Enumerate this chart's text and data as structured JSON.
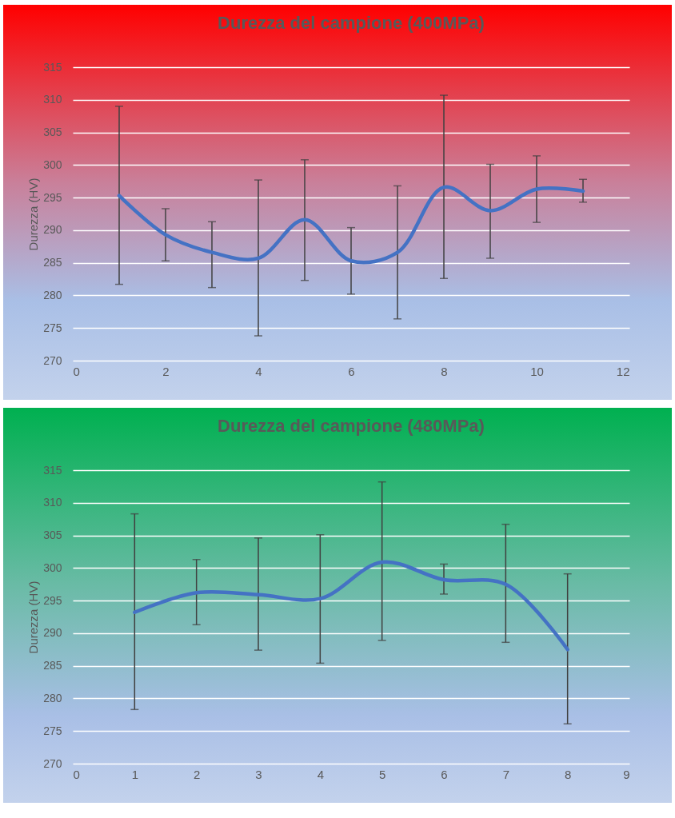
{
  "chart_data": [
    {
      "type": "line",
      "title": "Durezza del campione (400MPa)",
      "ylabel": "Durezza (HV)",
      "x": [
        1,
        2,
        3,
        4,
        5,
        6,
        7,
        8,
        9,
        10,
        11
      ],
      "values": [
        295.3,
        289.3,
        286.6,
        285.7,
        291.6,
        285.3,
        286.6,
        296.6,
        293.0,
        296.3,
        296.0
      ],
      "errors": [
        [
          281.7,
          309.0
        ],
        [
          285.3,
          293.3
        ],
        [
          281.2,
          291.3
        ],
        [
          273.8,
          297.7
        ],
        [
          282.3,
          300.8
        ],
        [
          280.2,
          290.4
        ],
        [
          276.4,
          296.8
        ],
        [
          282.6,
          310.7
        ],
        [
          285.7,
          300.1
        ],
        [
          291.2,
          301.4
        ],
        [
          294.3,
          297.8
        ]
      ],
      "color": "#4472c4",
      "xlim": [
        0,
        12
      ],
      "xticks": [
        0,
        2,
        4,
        6,
        8,
        10,
        12
      ],
      "ylim": [
        270,
        315
      ],
      "yticks": [
        270,
        275,
        280,
        285,
        290,
        295,
        300,
        305,
        310,
        315
      ],
      "grid": "y"
    },
    {
      "type": "line",
      "title": "Durezza del campione (480MPa)",
      "ylabel": "Durezza (HV)",
      "x": [
        1,
        2,
        3,
        4,
        5,
        6,
        7,
        8
      ],
      "values": [
        293.2,
        296.2,
        295.9,
        295.3,
        300.9,
        298.2,
        297.5,
        287.5
      ],
      "errors": [
        [
          278.3,
          308.3
        ],
        [
          291.3,
          301.3
        ],
        [
          287.4,
          304.6
        ],
        [
          285.4,
          305.1
        ],
        [
          288.9,
          313.2
        ],
        [
          296.0,
          300.6
        ],
        [
          288.6,
          306.7
        ],
        [
          276.1,
          299.1
        ]
      ],
      "color": "#4472c4",
      "xlim": [
        0,
        9
      ],
      "xticks": [
        0,
        1,
        2,
        3,
        4,
        5,
        6,
        7,
        8,
        9
      ],
      "ylim": [
        270,
        315
      ],
      "yticks": [
        270,
        275,
        280,
        285,
        290,
        295,
        300,
        305,
        310,
        315
      ],
      "grid": "y"
    }
  ]
}
